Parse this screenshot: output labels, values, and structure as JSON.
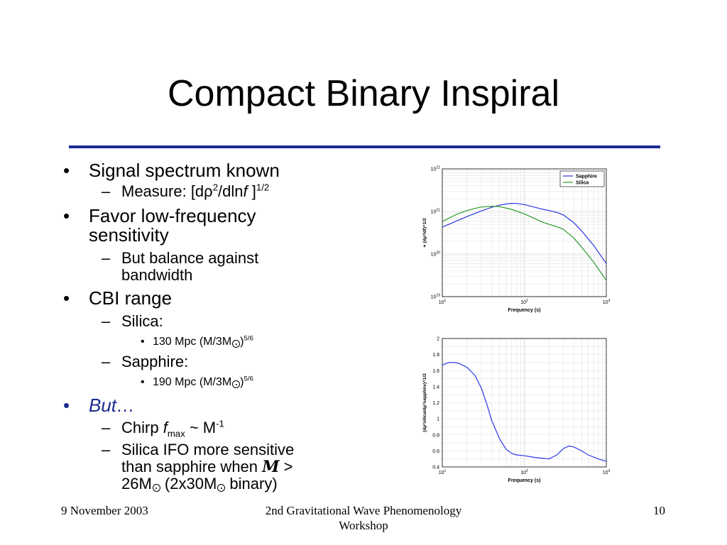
{
  "slide": {
    "title": "Compact Binary Inspiral"
  },
  "bullets": {
    "signal": "Signal spectrum known",
    "measure_prefix": "Measure: [d",
    "measure_rho": "ρ",
    "measure_sq": "2",
    "measure_mid": "/dln",
    "measure_f": "f",
    "measure_close": " ]",
    "measure_exp": "1/2",
    "favor_line1": "Favor low-frequency",
    "favor_line2": "sensitivity",
    "balance_line1": "But balance against",
    "balance_line2": "bandwidth",
    "cbi": "CBI range",
    "silica": "Silica:",
    "silica_val": "130 Mpc (M/3M",
    "silica_exp": "5/6",
    "sapphire": "Sapphire:",
    "sapphire_val": "190 Mpc (M/3M",
    "sapphire_exp": "5/6",
    "but": "But…",
    "chirp_prefix": "Chirp ",
    "chirp_f": "f",
    "chirp_sub": "max",
    "chirp_rest": " ~ M",
    "chirp_exp": "-1",
    "silica_ifo_line1": "Silica IFO more sensitive",
    "silica_ifo_line2": "than sapphire when ",
    "script_m": "M",
    "silica_ifo_gt": " >",
    "silica_ifo_line3a": "26M",
    "silica_ifo_line3b": " (2x30M",
    "silica_ifo_line3c": " binary)",
    "close_paren": ")"
  },
  "footer": {
    "date": "9 November 2003",
    "event": "2nd Gravitational Wave Phenomenology Workshop",
    "page": "10"
  },
  "chart_data": [
    {
      "type": "line",
      "xscale": "log",
      "yscale": "log",
      "xlim": [
        10,
        1000
      ],
      "ylim": [
        1e+19,
        1e+22
      ],
      "xlabel": "Frequency (s)",
      "ylabel": "∝ (dρ²/df)^1/2",
      "x_ticks": [
        "10^1",
        "10^2",
        "10^3"
      ],
      "y_ticks": [
        "10^19",
        "10^20",
        "10^21",
        "10^22"
      ],
      "grid": true,
      "legend_position": "top-right",
      "series": [
        {
          "name": "Sapphire",
          "color": "#2a36e8",
          "x": [
            10,
            15,
            20,
            30,
            40,
            50,
            60,
            70,
            80,
            100,
            130,
            160,
            200,
            250,
            300,
            400,
            500,
            700,
            1000
          ],
          "y": [
            4.3e+20,
            6e+20,
            7.6e+20,
            1.03e+21,
            1.25e+21,
            1.4e+21,
            1.5e+21,
            1.55e+21,
            1.54e+21,
            1.45e+21,
            1.28e+21,
            1.15e+21,
            1.05e+21,
            9.5e+20,
            8.3e+20,
            5.5e+20,
            3.5e+20,
            1.6e+20,
            6e+19
          ]
        },
        {
          "name": "Silica",
          "color": "#2a9a2a",
          "x": [
            10,
            15,
            20,
            25,
            30,
            40,
            50,
            70,
            100,
            130,
            160,
            200,
            250,
            300,
            400,
            500,
            700,
            1000
          ],
          "y": [
            5.8e+20,
            8.6e+20,
            1.05e+21,
            1.18e+21,
            1.27e+21,
            1.33e+21,
            1.3e+21,
            1.12e+21,
            8.8e+20,
            7e+20,
            5.8e+20,
            5e+20,
            4.4e+20,
            3.8e+20,
            2.4e+20,
            1.45e+20,
            6.5e+19,
            2.4e+19
          ]
        }
      ]
    },
    {
      "type": "line",
      "xscale": "log",
      "xlim": [
        10,
        1000
      ],
      "ylim": [
        0.4,
        2
      ],
      "xlabel": "Frequency (s)",
      "ylabel": "(dρ²silica/dρ²sapphire)^1/2",
      "x_ticks": [
        "10^1",
        "10^2",
        "10^3"
      ],
      "y_ticks": [
        "0.4",
        "0.6",
        "0.8",
        "1",
        "1.2",
        "1.4",
        "1.6",
        "1.8",
        "2"
      ],
      "grid": true,
      "series": [
        {
          "color": "#2a36e8",
          "x": [
            10,
            12,
            14,
            16,
            20,
            25,
            30,
            35,
            40,
            50,
            60,
            70,
            80,
            100,
            130,
            160,
            200,
            250,
            300,
            350,
            400,
            500,
            600,
            800,
            1000
          ],
          "y": [
            1.67,
            1.7,
            1.7,
            1.69,
            1.64,
            1.54,
            1.38,
            1.18,
            0.98,
            0.75,
            0.62,
            0.57,
            0.55,
            0.54,
            0.52,
            0.51,
            0.5,
            0.55,
            0.63,
            0.66,
            0.65,
            0.6,
            0.55,
            0.5,
            0.47
          ]
        }
      ]
    }
  ]
}
